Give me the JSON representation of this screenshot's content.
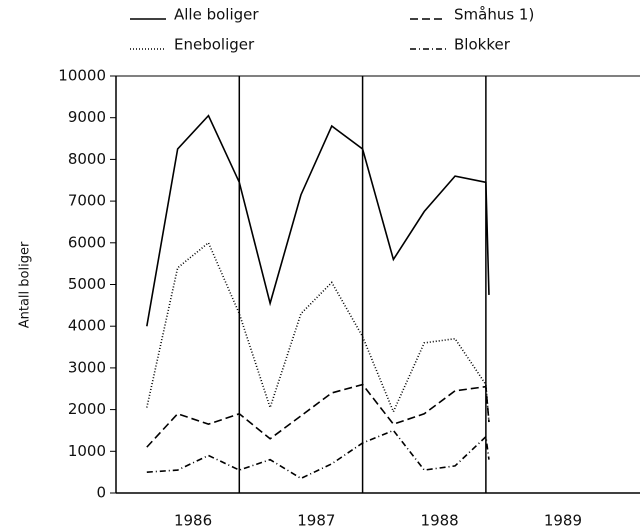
{
  "chart_data": {
    "type": "line",
    "ylabel": "Antall boliger",
    "x": [
      1986.125,
      1986.375,
      1986.625,
      1986.875,
      1987.125,
      1987.375,
      1987.625,
      1987.875,
      1988.125,
      1988.375,
      1988.625,
      1988.875,
      1988.9
    ],
    "series": [
      {
        "name": "Alle boliger",
        "color": "#000000",
        "dash": "none",
        "values": [
          4000,
          8250,
          9050,
          7450,
          4550,
          7150,
          8800,
          8250,
          5600,
          6750,
          7600,
          7450,
          4750
        ]
      },
      {
        "name": "Småhus 1)",
        "color": "#000000",
        "dash": "8,4",
        "values": [
          1100,
          1900,
          1650,
          1900,
          1300,
          1850,
          2400,
          2600,
          1650,
          1900,
          2450,
          2550,
          1700
        ]
      },
      {
        "name": "Eneboliger",
        "color": "#000000",
        "dash": "1,2",
        "values": [
          2050,
          5400,
          6000,
          4300,
          2050,
          4300,
          5050,
          3750,
          1950,
          3600,
          3700,
          2600,
          1700
        ]
      },
      {
        "name": "Blokker",
        "color": "#000000",
        "dash": "6,3,1,3",
        "values": [
          500,
          550,
          900,
          550,
          800,
          350,
          700,
          1200,
          1500,
          550,
          650,
          1350,
          800
        ]
      }
    ],
    "xlim": [
      1985.875,
      1990.125
    ],
    "xticks": [
      {
        "value": 1986.5,
        "label": "1986"
      },
      {
        "value": 1987.5,
        "label": "1987"
      },
      {
        "value": 1988.5,
        "label": "1988"
      },
      {
        "value": 1989.5,
        "label": "1989"
      }
    ],
    "vlines": [
      1986.875,
      1987.875,
      1988.875
    ],
    "ylim": [
      0,
      10000
    ],
    "yticks": [
      0,
      1000,
      2000,
      3000,
      4000,
      5000,
      6000,
      7000,
      8000,
      9000,
      10000
    ]
  }
}
